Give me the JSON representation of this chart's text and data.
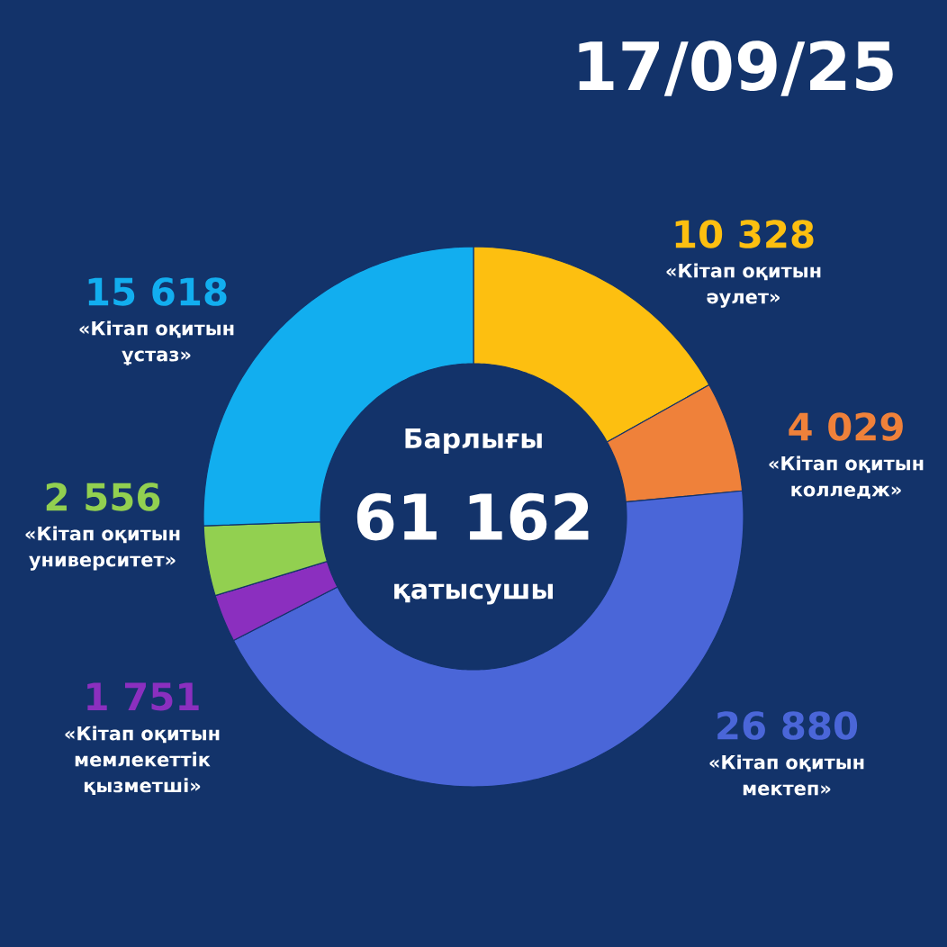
{
  "chart_data": {
    "type": "donut",
    "title": "17/09/25",
    "categories": [
      "«Кітап оқитын әулет»",
      "«Кітап оқитын колледж»",
      "«Кітап оқитын мектеп»",
      "«Кітап оқитын мемлекеттік қызметші»",
      "«Кітап оқитын университет»",
      "«Кітап оқитын ұстаз»"
    ],
    "values": [
      10328,
      4029,
      26880,
      1751,
      2556,
      15618
    ],
    "colors": [
      "#fdbf10",
      "#ef813a",
      "#4a66d8",
      "#8b2fbf",
      "#92d050",
      "#12aeef"
    ],
    "value_labels": [
      "10 328",
      "4 029",
      "26 880",
      "1 751",
      "2 556",
      "15 618"
    ],
    "annotations": [
      "Барлығы",
      "61 162",
      "қатысушы"
    ]
  }
}
